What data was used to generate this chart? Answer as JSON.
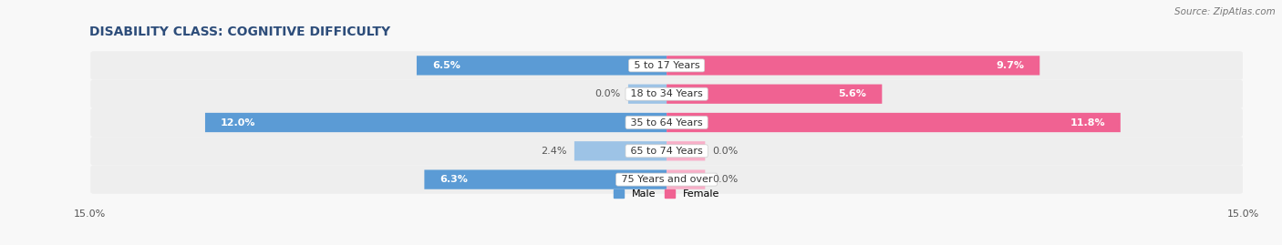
{
  "title": "DISABILITY CLASS: COGNITIVE DIFFICULTY",
  "source": "Source: ZipAtlas.com",
  "categories": [
    "5 to 17 Years",
    "18 to 34 Years",
    "35 to 64 Years",
    "65 to 74 Years",
    "75 Years and over"
  ],
  "male_values": [
    6.5,
    0.0,
    12.0,
    2.4,
    6.3
  ],
  "female_values": [
    9.7,
    5.6,
    11.8,
    0.0,
    0.0
  ],
  "max_val": 15.0,
  "male_color_strong": "#5b9bd5",
  "male_color_light": "#9dc3e6",
  "female_color_strong": "#f06292",
  "female_color_light": "#f8afc8",
  "row_bg_color": "#eeeeee",
  "fig_bg_color": "#f8f8f8",
  "title_color": "#2d4d7a",
  "title_fontsize": 10,
  "label_fontsize": 8,
  "tick_fontsize": 8,
  "strong_threshold": 4.0
}
